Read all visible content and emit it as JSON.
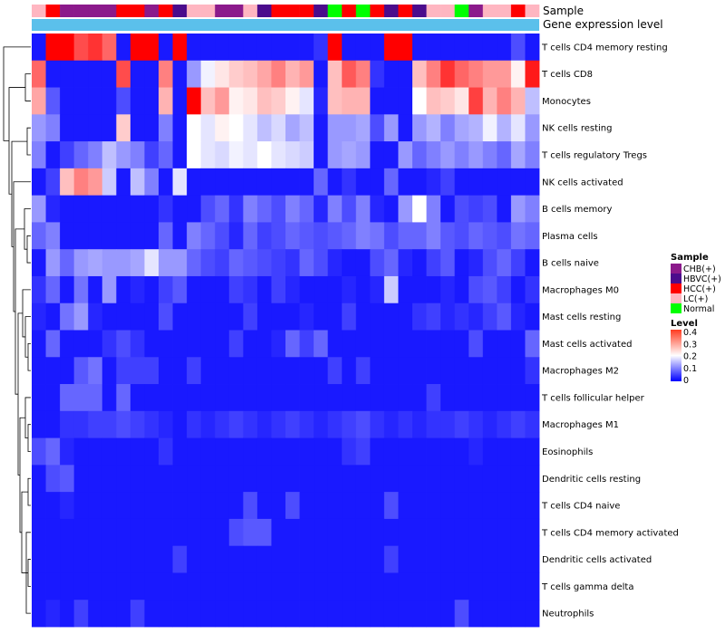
{
  "chart_data": {
    "type": "heatmap",
    "title": "",
    "annotation_labels": {
      "sample": "Sample",
      "expression": "Gene expression level"
    },
    "rows": [
      "T cells CD4 memory resting",
      "T cells CD8",
      "Monocytes",
      "NK cells resting",
      "T cells regulatory  Tregs",
      "NK cells activated",
      "B cells memory",
      "Plasma cells",
      "B cells naive",
      "Macrophages M0",
      "Mast cells resting",
      "Mast cells activated",
      "Macrophages M2",
      "T cells follicular helper",
      "Macrophages M1",
      "Eosinophils",
      "Dendritic cells resting",
      "T cells CD4 naive",
      "T cells CD4 memory activated",
      "Dendritic cells activated",
      "T cells gamma delta",
      "Neutrophils"
    ],
    "sample_groups": [
      "LC(+)",
      "HCC(+)",
      "CHB(+)",
      "CHB(+)",
      "CHB(+)",
      "CHB(+)",
      "HCC(+)",
      "HCC(+)",
      "CHB(+)",
      "HCC(+)",
      "HBVC(+)",
      "LC(+)",
      "LC(+)",
      "CHB(+)",
      "CHB(+)",
      "LC(+)",
      "HBVC(+)",
      "HCC(+)",
      "HCC(+)",
      "HCC(+)",
      "HBVC(+)",
      "Normal",
      "HCC(+)",
      "Normal",
      "HCC(+)",
      "HBVC(+)",
      "HCC(+)",
      "HBVC(+)",
      "LC(+)",
      "LC(+)",
      "Normal",
      "CHB(+)",
      "LC(+)",
      "LC(+)",
      "HCC(+)",
      "LC(+)"
    ],
    "values": [
      [
        0.02,
        0.4,
        0.4,
        0.34,
        0.36,
        0.32,
        0.02,
        0.4,
        0.4,
        0.02,
        0.4,
        0.02,
        0.02,
        0.02,
        0.02,
        0.02,
        0.02,
        0.02,
        0.02,
        0.02,
        0.04,
        0.4,
        0.02,
        0.02,
        0.02,
        0.4,
        0.4,
        0.02,
        0.02,
        0.02,
        0.02,
        0.02,
        0.02,
        0.02,
        0.06,
        0.02
      ],
      [
        0.32,
        0.02,
        0.02,
        0.02,
        0.02,
        0.02,
        0.34,
        0.02,
        0.02,
        0.3,
        0.02,
        0.12,
        0.19,
        0.22,
        0.24,
        0.25,
        0.27,
        0.3,
        0.26,
        0.28,
        0.02,
        0.25,
        0.33,
        0.3,
        0.04,
        0.02,
        0.02,
        0.25,
        0.3,
        0.36,
        0.32,
        0.3,
        0.28,
        0.28,
        0.21,
        0.38
      ],
      [
        0.27,
        0.07,
        0.02,
        0.02,
        0.02,
        0.02,
        0.06,
        0.02,
        0.02,
        0.26,
        0.02,
        0.4,
        0.25,
        0.28,
        0.21,
        0.22,
        0.25,
        0.24,
        0.21,
        0.18,
        0.03,
        0.25,
        0.26,
        0.26,
        0.02,
        0.02,
        0.02,
        0.2,
        0.25,
        0.24,
        0.22,
        0.35,
        0.26,
        0.3,
        0.26,
        0.15
      ],
      [
        0.12,
        0.1,
        0.02,
        0.02,
        0.02,
        0.02,
        0.24,
        0.02,
        0.02,
        0.1,
        0.02,
        0.2,
        0.18,
        0.21,
        0.2,
        0.18,
        0.15,
        0.17,
        0.13,
        0.15,
        0.02,
        0.12,
        0.12,
        0.13,
        0.06,
        0.12,
        0.02,
        0.12,
        0.14,
        0.1,
        0.13,
        0.14,
        0.19,
        0.14,
        0.18,
        0.12
      ],
      [
        0.1,
        0.02,
        0.05,
        0.08,
        0.1,
        0.15,
        0.12,
        0.1,
        0.05,
        0.08,
        0.02,
        0.2,
        0.18,
        0.17,
        0.19,
        0.18,
        0.2,
        0.18,
        0.17,
        0.16,
        0.02,
        0.12,
        0.13,
        0.12,
        0.02,
        0.02,
        0.12,
        0.08,
        0.1,
        0.12,
        0.1,
        0.12,
        0.1,
        0.08,
        0.13,
        0.1
      ],
      [
        0.02,
        0.05,
        0.25,
        0.3,
        0.28,
        0.16,
        0.02,
        0.15,
        0.1,
        0.02,
        0.18,
        0.02,
        0.02,
        0.02,
        0.02,
        0.02,
        0.02,
        0.02,
        0.02,
        0.02,
        0.08,
        0.02,
        0.04,
        0.02,
        0.02,
        0.08,
        0.02,
        0.02,
        0.03,
        0.05,
        0.02,
        0.02,
        0.02,
        0.02,
        0.02,
        0.02
      ],
      [
        0.12,
        0.03,
        0.02,
        0.02,
        0.02,
        0.02,
        0.02,
        0.02,
        0.02,
        0.04,
        0.02,
        0.02,
        0.06,
        0.08,
        0.04,
        0.1,
        0.08,
        0.06,
        0.1,
        0.08,
        0.03,
        0.1,
        0.06,
        0.1,
        0.03,
        0.02,
        0.12,
        0.2,
        0.1,
        0.02,
        0.06,
        0.05,
        0.06,
        0.02,
        0.12,
        0.1
      ],
      [
        0.08,
        0.1,
        0.02,
        0.02,
        0.02,
        0.02,
        0.02,
        0.02,
        0.02,
        0.08,
        0.02,
        0.1,
        0.08,
        0.06,
        0.03,
        0.08,
        0.05,
        0.06,
        0.08,
        0.07,
        0.06,
        0.07,
        0.08,
        0.1,
        0.09,
        0.06,
        0.08,
        0.08,
        0.1,
        0.07,
        0.06,
        0.08,
        0.07,
        0.06,
        0.09,
        0.08
      ],
      [
        0.02,
        0.12,
        0.08,
        0.12,
        0.13,
        0.12,
        0.12,
        0.13,
        0.18,
        0.12,
        0.12,
        0.08,
        0.06,
        0.05,
        0.08,
        0.07,
        0.06,
        0.05,
        0.04,
        0.08,
        0.06,
        0.03,
        0.02,
        0.02,
        0.06,
        0.08,
        0.03,
        0.02,
        0.05,
        0.07,
        0.02,
        0.03,
        0.06,
        0.08,
        0.05,
        0.02
      ],
      [
        0.04,
        0.08,
        0.02,
        0.09,
        0.02,
        0.12,
        0.02,
        0.03,
        0.02,
        0.05,
        0.07,
        0.02,
        0.02,
        0.02,
        0.05,
        0.04,
        0.02,
        0.05,
        0.03,
        0.02,
        0.02,
        0.02,
        0.03,
        0.02,
        0.03,
        0.16,
        0.02,
        0.02,
        0.02,
        0.03,
        0.02,
        0.06,
        0.07,
        0.05,
        0.02,
        0.04
      ],
      [
        0.03,
        0.02,
        0.09,
        0.12,
        0.03,
        0.02,
        0.02,
        0.02,
        0.02,
        0.06,
        0.02,
        0.02,
        0.02,
        0.02,
        0.02,
        0.05,
        0.02,
        0.02,
        0.02,
        0.03,
        0.02,
        0.02,
        0.05,
        0.02,
        0.02,
        0.02,
        0.02,
        0.04,
        0.05,
        0.03,
        0.04,
        0.03,
        0.05,
        0.07,
        0.03,
        0.02
      ],
      [
        0.02,
        0.08,
        0.02,
        0.02,
        0.02,
        0.04,
        0.06,
        0.04,
        0.02,
        0.02,
        0.02,
        0.02,
        0.02,
        0.02,
        0.05,
        0.02,
        0.02,
        0.03,
        0.08,
        0.05,
        0.08,
        0.02,
        0.02,
        0.02,
        0.02,
        0.02,
        0.02,
        0.02,
        0.02,
        0.02,
        0.02,
        0.06,
        0.02,
        0.02,
        0.02,
        0.08
      ],
      [
        0.02,
        0.02,
        0.02,
        0.07,
        0.09,
        0.02,
        0.05,
        0.05,
        0.05,
        0.02,
        0.02,
        0.05,
        0.02,
        0.02,
        0.02,
        0.02,
        0.02,
        0.02,
        0.02,
        0.02,
        0.02,
        0.05,
        0.02,
        0.05,
        0.02,
        0.02,
        0.02,
        0.02,
        0.02,
        0.02,
        0.02,
        0.02,
        0.02,
        0.02,
        0.02,
        0.04
      ],
      [
        0.02,
        0.02,
        0.08,
        0.08,
        0.08,
        0.02,
        0.08,
        0.02,
        0.02,
        0.02,
        0.02,
        0.02,
        0.02,
        0.02,
        0.02,
        0.02,
        0.02,
        0.02,
        0.02,
        0.02,
        0.02,
        0.02,
        0.02,
        0.02,
        0.02,
        0.02,
        0.02,
        0.02,
        0.05,
        0.02,
        0.02,
        0.02,
        0.02,
        0.02,
        0.02,
        0.02
      ],
      [
        0.02,
        0.02,
        0.04,
        0.04,
        0.05,
        0.05,
        0.06,
        0.05,
        0.04,
        0.03,
        0.02,
        0.04,
        0.03,
        0.04,
        0.05,
        0.04,
        0.03,
        0.04,
        0.05,
        0.04,
        0.03,
        0.04,
        0.05,
        0.06,
        0.04,
        0.03,
        0.04,
        0.03,
        0.04,
        0.04,
        0.05,
        0.04,
        0.03,
        0.04,
        0.05,
        0.04
      ],
      [
        0.06,
        0.08,
        0.03,
        0.02,
        0.02,
        0.02,
        0.02,
        0.02,
        0.02,
        0.04,
        0.02,
        0.02,
        0.02,
        0.02,
        0.02,
        0.02,
        0.02,
        0.02,
        0.02,
        0.02,
        0.02,
        0.02,
        0.04,
        0.05,
        0.02,
        0.02,
        0.02,
        0.02,
        0.02,
        0.02,
        0.02,
        0.03,
        0.02,
        0.02,
        0.02,
        0.02
      ],
      [
        0.02,
        0.06,
        0.07,
        0.02,
        0.02,
        0.02,
        0.02,
        0.02,
        0.02,
        0.02,
        0.02,
        0.02,
        0.02,
        0.02,
        0.02,
        0.02,
        0.02,
        0.02,
        0.02,
        0.02,
        0.02,
        0.02,
        0.02,
        0.02,
        0.02,
        0.02,
        0.02,
        0.02,
        0.02,
        0.02,
        0.02,
        0.02,
        0.02,
        0.02,
        0.02,
        0.02
      ],
      [
        0.02,
        0.02,
        0.03,
        0.02,
        0.02,
        0.02,
        0.02,
        0.02,
        0.02,
        0.02,
        0.02,
        0.02,
        0.02,
        0.02,
        0.02,
        0.06,
        0.02,
        0.02,
        0.06,
        0.02,
        0.02,
        0.02,
        0.02,
        0.02,
        0.02,
        0.06,
        0.02,
        0.02,
        0.02,
        0.02,
        0.02,
        0.02,
        0.02,
        0.02,
        0.02,
        0.02
      ],
      [
        0.02,
        0.02,
        0.02,
        0.02,
        0.02,
        0.02,
        0.02,
        0.02,
        0.02,
        0.02,
        0.02,
        0.02,
        0.02,
        0.02,
        0.06,
        0.07,
        0.07,
        0.02,
        0.02,
        0.02,
        0.02,
        0.02,
        0.02,
        0.02,
        0.02,
        0.02,
        0.02,
        0.02,
        0.02,
        0.02,
        0.02,
        0.02,
        0.02,
        0.02,
        0.02,
        0.02
      ],
      [
        0.02,
        0.02,
        0.02,
        0.02,
        0.02,
        0.02,
        0.02,
        0.02,
        0.02,
        0.02,
        0.05,
        0.02,
        0.02,
        0.02,
        0.02,
        0.02,
        0.02,
        0.02,
        0.02,
        0.02,
        0.02,
        0.02,
        0.02,
        0.02,
        0.02,
        0.05,
        0.02,
        0.02,
        0.02,
        0.02,
        0.02,
        0.02,
        0.02,
        0.02,
        0.02,
        0.02
      ],
      [
        0.02,
        0.02,
        0.02,
        0.02,
        0.02,
        0.02,
        0.02,
        0.02,
        0.02,
        0.02,
        0.02,
        0.02,
        0.02,
        0.02,
        0.02,
        0.02,
        0.02,
        0.02,
        0.02,
        0.02,
        0.02,
        0.02,
        0.02,
        0.02,
        0.02,
        0.02,
        0.02,
        0.02,
        0.02,
        0.02,
        0.02,
        0.02,
        0.02,
        0.02,
        0.02,
        0.02
      ],
      [
        0.02,
        0.03,
        0.02,
        0.05,
        0.02,
        0.02,
        0.02,
        0.05,
        0.02,
        0.02,
        0.02,
        0.02,
        0.02,
        0.02,
        0.02,
        0.02,
        0.02,
        0.02,
        0.02,
        0.02,
        0.02,
        0.02,
        0.02,
        0.02,
        0.02,
        0.02,
        0.02,
        0.02,
        0.02,
        0.02,
        0.06,
        0.02,
        0.02,
        0.02,
        0.02,
        0.02
      ]
    ],
    "color_scale": {
      "min": 0,
      "max": 0.4,
      "low_color": "#0000ff",
      "mid_color": "#ffffff",
      "high_color": "#ff0000",
      "mid_value": 0.2
    },
    "legend": {
      "sample_title": "Sample",
      "groups": [
        {
          "label": "CHB(+)",
          "color": "#8b1a8b"
        },
        {
          "label": "HBVC(+)",
          "color": "#4b0c8c"
        },
        {
          "label": "HCC(+)",
          "color": "#ff0000"
        },
        {
          "label": "LC(+)",
          "color": "#ffb6c1"
        },
        {
          "label": "Normal",
          "color": "#00ff00"
        }
      ],
      "level_title": "Level",
      "level_ticks": [
        "0.4",
        "0.3",
        "0.2",
        "0.1",
        "0"
      ]
    },
    "expression_bar_color": "#5bc0eb",
    "row_dendrogram": true
  }
}
